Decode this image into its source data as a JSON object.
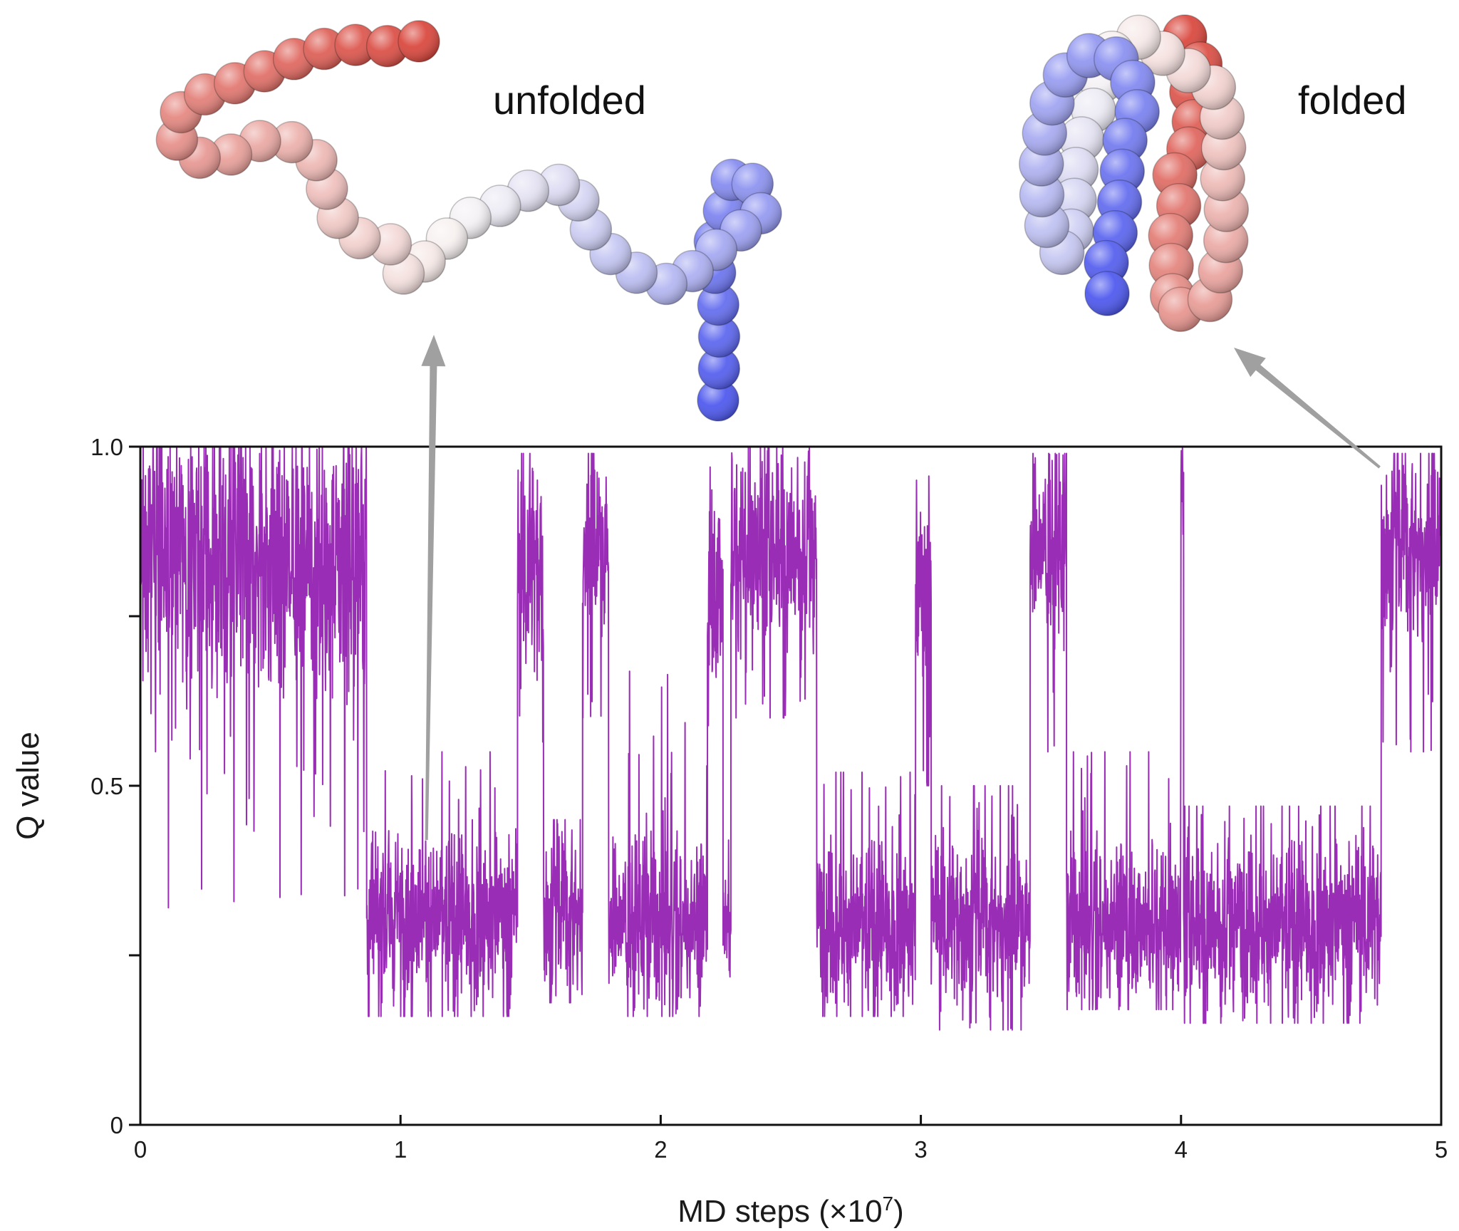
{
  "chart_data": {
    "type": "line",
    "xlabel": "MD steps (×10",
    "xlabel_exponent": "7",
    "xlabel_suffix": ")",
    "ylabel": "Q value",
    "xlim": [
      0,
      5
    ],
    "ylim": [
      0,
      1
    ],
    "x_ticks": [
      "0",
      "1",
      "2",
      "3",
      "4",
      "5"
    ],
    "y_ticks": [
      {
        "value": 0,
        "label": "0"
      },
      {
        "value": 0.25,
        "label": ""
      },
      {
        "value": 0.5,
        "label": "0.5"
      },
      {
        "value": 0.75,
        "label": ""
      },
      {
        "value": 1.0,
        "label": "1.0"
      }
    ],
    "grid": false,
    "line_color": "#9a2db5",
    "series": [
      {
        "segments": [
          {
            "x0": 0.0,
            "x1": 0.87,
            "mean": 0.83,
            "spread": 0.1,
            "min": 0.32,
            "max": 1.0
          },
          {
            "x0": 0.87,
            "x1": 1.45,
            "mean": 0.31,
            "spread": 0.06,
            "min": 0.16,
            "max": 0.55
          },
          {
            "x0": 1.45,
            "x1": 1.55,
            "mean": 0.82,
            "spread": 0.08,
            "min": 0.55,
            "max": 0.99
          },
          {
            "x0": 1.55,
            "x1": 1.7,
            "mean": 0.31,
            "spread": 0.06,
            "min": 0.18,
            "max": 0.45
          },
          {
            "x0": 1.7,
            "x1": 1.8,
            "mean": 0.85,
            "spread": 0.07,
            "min": 0.6,
            "max": 0.99
          },
          {
            "x0": 1.8,
            "x1": 2.18,
            "mean": 0.3,
            "spread": 0.06,
            "min": 0.16,
            "max": 0.67
          },
          {
            "x0": 2.18,
            "x1": 2.24,
            "mean": 0.8,
            "spread": 0.08,
            "min": 0.55,
            "max": 0.97
          },
          {
            "x0": 2.24,
            "x1": 2.27,
            "mean": 0.3,
            "spread": 0.05,
            "min": 0.2,
            "max": 0.42
          },
          {
            "x0": 2.27,
            "x1": 2.6,
            "mean": 0.85,
            "spread": 0.07,
            "min": 0.6,
            "max": 1.0
          },
          {
            "x0": 2.6,
            "x1": 2.98,
            "mean": 0.3,
            "spread": 0.06,
            "min": 0.16,
            "max": 0.52
          },
          {
            "x0": 2.98,
            "x1": 3.04,
            "mean": 0.78,
            "spread": 0.09,
            "min": 0.5,
            "max": 0.99
          },
          {
            "x0": 3.04,
            "x1": 3.42,
            "mean": 0.3,
            "spread": 0.06,
            "min": 0.14,
            "max": 0.5
          },
          {
            "x0": 3.42,
            "x1": 3.56,
            "mean": 0.85,
            "spread": 0.07,
            "min": 0.55,
            "max": 0.99
          },
          {
            "x0": 3.56,
            "x1": 4.0,
            "mean": 0.3,
            "spread": 0.06,
            "min": 0.17,
            "max": 0.55
          },
          {
            "x0": 4.0,
            "x1": 4.01,
            "mean": 0.95,
            "spread": 0.03,
            "min": 0.85,
            "max": 1.0
          },
          {
            "x0": 4.01,
            "x1": 4.77,
            "mean": 0.3,
            "spread": 0.06,
            "min": 0.15,
            "max": 0.47
          },
          {
            "x0": 4.77,
            "x1": 5.0,
            "mean": 0.85,
            "spread": 0.07,
            "min": 0.55,
            "max": 0.99
          }
        ]
      }
    ]
  },
  "annotations": {
    "unfolded_label": "unfolded",
    "folded_label": "folded",
    "arrow_color": "#a0a0a0",
    "unfolded_arrow_target": {
      "x": 1.1,
      "y": 0.42
    },
    "folded_arrow_target": {
      "x": 4.78,
      "y": 0.98
    }
  },
  "structures": {
    "unfolded": {
      "name": "unfolded",
      "color_start": "#d9443a",
      "color_mid": "#f8f5f4",
      "color_end": "#4a55ee"
    },
    "folded": {
      "name": "folded",
      "color_start": "#d9443a",
      "color_mid": "#f8f5f4",
      "color_end": "#4a55ee"
    }
  }
}
